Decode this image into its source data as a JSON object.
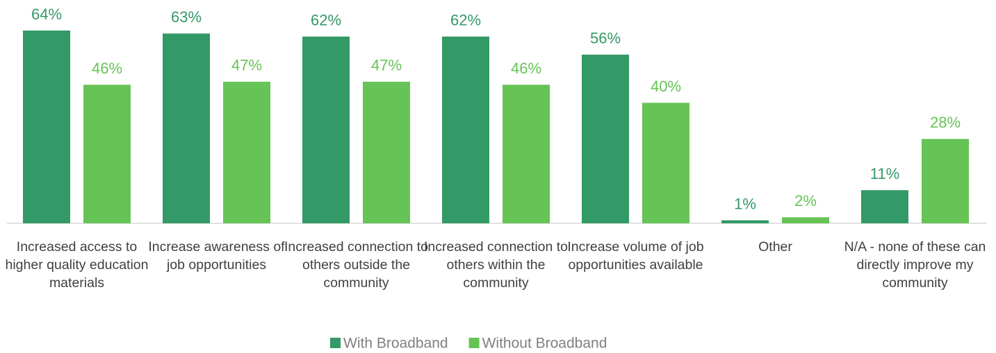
{
  "chart_data": {
    "type": "bar",
    "categories": [
      "Increased access to higher quality education materials",
      "Increase awareness of job opportunities",
      "Increased connection to others outside the community",
      "Increased connection to others within the community",
      "Increase volume of job opportunities available",
      "Other",
      "N/A - none of these can directly improve my community"
    ],
    "series": [
      {
        "name": "With Broadband",
        "color": "#339966",
        "values": [
          64,
          63,
          62,
          62,
          56,
          1,
          11
        ],
        "value_labels": [
          "64%",
          "63%",
          "62%",
          "62%",
          "56%",
          "1%",
          "11%"
        ]
      },
      {
        "name": "Without Broadband",
        "color": "#66c355",
        "values": [
          46,
          47,
          47,
          46,
          40,
          2,
          28
        ],
        "value_labels": [
          "46%",
          "47%",
          "47%",
          "46%",
          "40%",
          "2%",
          "28%"
        ]
      }
    ],
    "legend": "bottom"
  }
}
